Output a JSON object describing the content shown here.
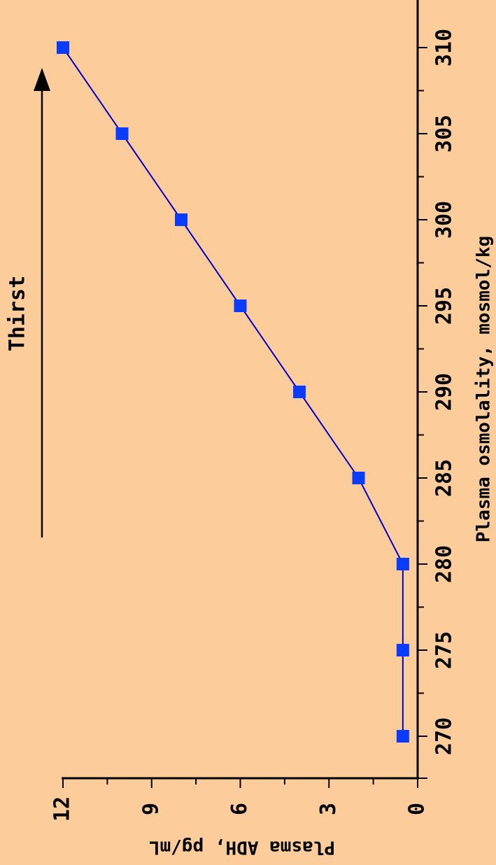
{
  "chart_data": {
    "type": "line",
    "xlabel": "Plasma osmolality, mosmol/kg",
    "ylabel": "Plasma ADH, pg/mL",
    "annotation": "Thirst",
    "x_ticks": [
      270,
      275,
      280,
      285,
      290,
      295,
      300,
      305,
      310
    ],
    "y_ticks": [
      0,
      3,
      6,
      9,
      12
    ],
    "xlim": [
      268,
      313
    ],
    "ylim": [
      0,
      12
    ],
    "series": [
      {
        "x": [
          270,
          275,
          280,
          285,
          290,
          295,
          300,
          305,
          310
        ],
        "y": [
          0.5,
          0.5,
          0.5,
          2.0,
          4.0,
          6.0,
          8.0,
          10.0,
          12.0
        ]
      }
    ],
    "colors": {
      "background": "#fccc9a",
      "series": "#0a3cff",
      "line": "#0000cc",
      "axis": "#000000"
    }
  }
}
